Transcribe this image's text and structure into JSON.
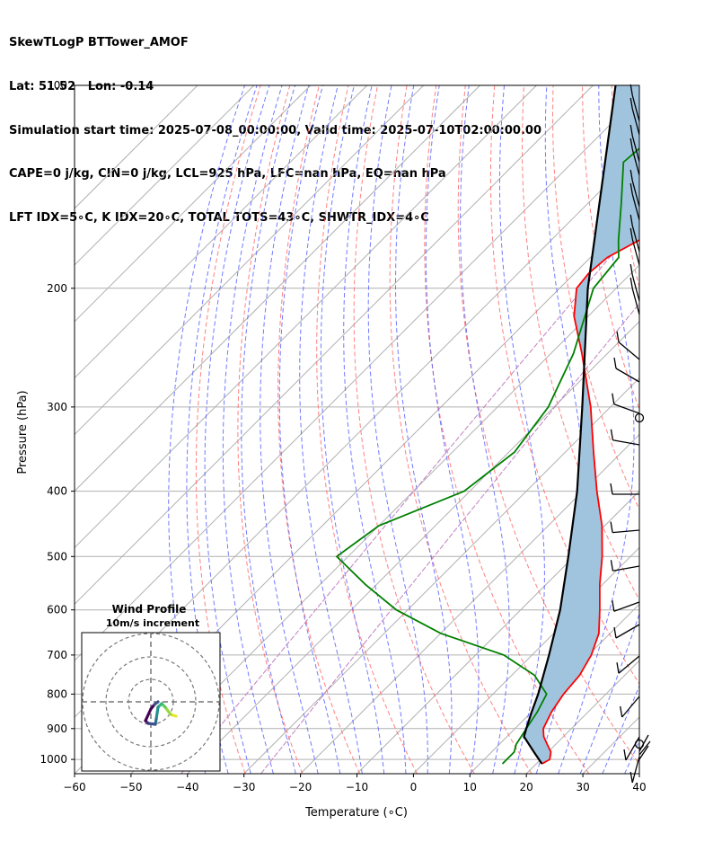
{
  "header": {
    "line1": "SkewTLogP BTTower_AMOF",
    "line2": "Lat: 51.52   Lon: -0.14",
    "line3": "Simulation start time: 2025-07-08_00:00:00, Valid time: 2025-07-10T02:00:00.00",
    "line4": "CAPE=0 j/kg, CIN=0 j/kg, LCL=925 hPa, LFC=nan hPa, EQ=nan hPa",
    "line5": "LFT IDX=5∘C, K IDX=20∘C, TOTAL TOTS=43∘C, SHWTR_IDX=4∘C"
  },
  "chart_data": {
    "type": "line",
    "subtype": "skew-t log-p",
    "xlabel": "Temperature (∘C)",
    "ylabel": "Pressure (hPa)",
    "xlim": [
      -60,
      40
    ],
    "ylim": [
      1050,
      100
    ],
    "x_ticks": [
      -60,
      -50,
      -40,
      -30,
      -20,
      -10,
      0,
      10,
      20,
      30,
      40
    ],
    "x_tick_labels": [
      "−60",
      "−50",
      "−40",
      "−30",
      "−20",
      "−10",
      "0",
      "10",
      "20",
      "30",
      "40"
    ],
    "y_ticks": [
      1000,
      900,
      800,
      700,
      600,
      500,
      400,
      300,
      200,
      100
    ],
    "y_scale": "log",
    "grid": true,
    "colors": {
      "temperature": "#ff0000",
      "dewpoint": "#008000",
      "parcel": "#000000",
      "cape_fill": "#a1c4de",
      "dry_adiabats": "#ff6b6b",
      "moist_adiabats": "#5a63ff",
      "mixing_ratio": "#c080c0",
      "isotherms": "#b0b0b0"
    },
    "series": [
      {
        "name": "temperature",
        "points": [
          [
            1015,
            21
          ],
          [
            1000,
            21.6
          ],
          [
            975,
            20.5
          ],
          [
            950,
            18.5
          ],
          [
            925,
            16.5
          ],
          [
            900,
            15
          ],
          [
            850,
            13.5
          ],
          [
            800,
            12.5
          ],
          [
            750,
            12
          ],
          [
            700,
            10.5
          ],
          [
            650,
            8
          ],
          [
            600,
            4
          ],
          [
            550,
            -0.5
          ],
          [
            500,
            -5
          ],
          [
            450,
            -10.5
          ],
          [
            400,
            -17.5
          ],
          [
            350,
            -25
          ],
          [
            300,
            -33.5
          ],
          [
            250,
            -44.5
          ],
          [
            220,
            -52.5
          ],
          [
            200,
            -57
          ],
          [
            190,
            -57.5
          ],
          [
            180,
            -57
          ],
          [
            170,
            -54.5
          ],
          [
            150,
            -52
          ],
          [
            130,
            -49.5
          ],
          [
            115,
            -49
          ],
          [
            100,
            -48.5
          ]
        ]
      },
      {
        "name": "dewpoint",
        "points": [
          [
            1015,
            14
          ],
          [
            975,
            14
          ],
          [
            950,
            13
          ],
          [
            900,
            12
          ],
          [
            850,
            11
          ],
          [
            800,
            9.5
          ],
          [
            750,
            4
          ],
          [
            700,
            -5
          ],
          [
            650,
            -20
          ],
          [
            600,
            -32
          ],
          [
            550,
            -42
          ],
          [
            500,
            -52
          ],
          [
            450,
            -50
          ],
          [
            400,
            -41
          ],
          [
            350,
            -39
          ],
          [
            300,
            -41
          ],
          [
            250,
            -46
          ],
          [
            200,
            -54
          ],
          [
            180,
            -55
          ],
          [
            170,
            -58
          ],
          [
            150,
            -64
          ],
          [
            130,
            -71
          ],
          [
            115,
            -70
          ],
          [
            100,
            -66
          ]
        ]
      },
      {
        "name": "parcel",
        "points": [
          [
            1015,
            21
          ],
          [
            975,
            17.5
          ],
          [
            925,
            13
          ],
          [
            900,
            12
          ],
          [
            850,
            10
          ],
          [
            800,
            8
          ],
          [
            700,
            3
          ],
          [
            600,
            -3
          ],
          [
            500,
            -11
          ],
          [
            400,
            -21
          ],
          [
            300,
            -35
          ],
          [
            200,
            -55
          ],
          [
            100,
            -86
          ]
        ]
      }
    ],
    "wind_profile_inset": {
      "title": "Wind Profile",
      "subtitle": "10m/s increment"
    }
  }
}
